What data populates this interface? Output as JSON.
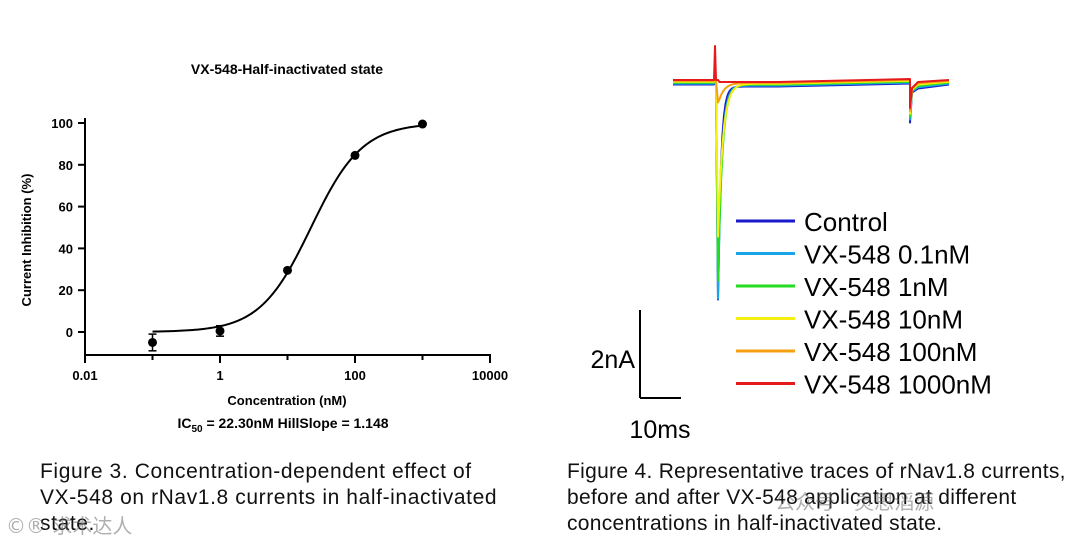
{
  "figures": [
    {
      "caption": "Figure 3. Concentration-dependent effect of VX-548 on rNav1.8 currents in half-inactivated state."
    },
    {
      "caption": "Figure 4. Representative traces of rNav1.8 currents, before and after VX-548 application at different concentrations in half-inactivated state."
    }
  ],
  "watermarks": {
    "left": "©® 求术达人",
    "right": "公众号 · 灵思滔源"
  },
  "chart_data": [
    {
      "type": "scatter",
      "title": "VX-548-Half-inactivated state",
      "xlabel": "Concentration (nM)",
      "ylabel": "Current Inhibition (%)",
      "xscale": "log",
      "xlim": [
        0.01,
        10000
      ],
      "ylim": [
        -10,
        100
      ],
      "xticks": [
        "0.01",
        "1",
        "100",
        "10000"
      ],
      "yticks": [
        "0",
        "20",
        "40",
        "60",
        "80",
        "100"
      ],
      "points": [
        {
          "x": 0.1,
          "y": -5,
          "err": 4
        },
        {
          "x": 1,
          "y": 0.5,
          "err": 2.5
        },
        {
          "x": 10,
          "y": 29.5,
          "err": 0
        },
        {
          "x": 100,
          "y": 84.5,
          "err": 0
        },
        {
          "x": 1000,
          "y": 99.5,
          "err": 0
        }
      ],
      "fit": {
        "bottom": 0,
        "top": 100,
        "ic50": 22.3,
        "hillslope": 1.148
      },
      "annotation": {
        "prefix": "IC",
        "sub": "50",
        "suffix": " = 22.30nM HillSlope = 1.148"
      },
      "grid": false
    },
    {
      "type": "line",
      "legend_position": "right",
      "series": [
        {
          "name": "Control",
          "color": "#1a1acc"
        },
        {
          "name": "VX-548 0.1nM",
          "color": "#1aa3e6"
        },
        {
          "name": "VX-548 1nM",
          "color": "#22dd22"
        },
        {
          "name": "VX-548 10nM",
          "color": "#f5f010"
        },
        {
          "name": "VX-548 100nM",
          "color": "#f5a010"
        },
        {
          "name": "VX-548 1000nM",
          "color": "#e61a1a"
        }
      ],
      "peak_fraction": [
        1.0,
        1.0,
        0.92,
        0.72,
        0.1,
        0.0
      ],
      "scale_bar": {
        "y_label": "2nA",
        "x_label": "10ms"
      }
    }
  ]
}
